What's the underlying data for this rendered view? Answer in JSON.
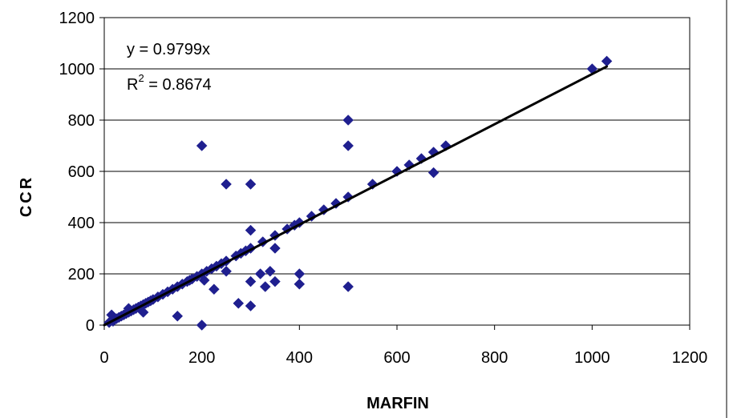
{
  "chart_data": {
    "type": "scatter",
    "title": "",
    "xlabel": "MARFIN",
    "ylabel": "CCR",
    "xlim": [
      0,
      1200
    ],
    "ylim": [
      0,
      1200
    ],
    "xticks": [
      0,
      200,
      400,
      600,
      800,
      1000,
      1200
    ],
    "yticks": [
      0,
      200,
      400,
      600,
      800,
      1000,
      1200
    ],
    "xtick_labels": [
      "0",
      "200",
      "400",
      "600",
      "800",
      "1000",
      "1200"
    ],
    "ytick_labels": [
      "0",
      "200",
      "400",
      "600",
      "800",
      "1000",
      "1200"
    ],
    "horizontal_grid": true,
    "vertical_grid": false,
    "marker": "diamond",
    "marker_color": "#1f1f8f",
    "trendline_color": "#000000",
    "trendline": {
      "slope": 0.9799,
      "intercept": 0,
      "x_range": [
        0,
        1030
      ],
      "equation_label": "y = 0.9799x",
      "r2_prefix": "R",
      "r2_superscript": "2",
      "r2_value": " = 0.8674"
    },
    "points": [
      [
        10,
        10
      ],
      [
        15,
        40
      ],
      [
        18,
        15
      ],
      [
        20,
        20
      ],
      [
        25,
        25
      ],
      [
        30,
        30
      ],
      [
        35,
        35
      ],
      [
        40,
        40
      ],
      [
        45,
        45
      ],
      [
        50,
        50
      ],
      [
        50,
        65
      ],
      [
        55,
        55
      ],
      [
        60,
        60
      ],
      [
        65,
        65
      ],
      [
        70,
        70
      ],
      [
        75,
        75
      ],
      [
        80,
        80
      ],
      [
        80,
        50
      ],
      [
        85,
        85
      ],
      [
        90,
        90
      ],
      [
        95,
        95
      ],
      [
        100,
        100
      ],
      [
        110,
        110
      ],
      [
        120,
        120
      ],
      [
        130,
        130
      ],
      [
        140,
        140
      ],
      [
        150,
        150
      ],
      [
        150,
        35
      ],
      [
        160,
        160
      ],
      [
        170,
        170
      ],
      [
        175,
        175
      ],
      [
        180,
        180
      ],
      [
        190,
        190
      ],
      [
        200,
        200
      ],
      [
        200,
        700
      ],
      [
        200,
        0
      ],
      [
        205,
        175
      ],
      [
        210,
        210
      ],
      [
        220,
        220
      ],
      [
        225,
        140
      ],
      [
        230,
        230
      ],
      [
        240,
        240
      ],
      [
        250,
        250
      ],
      [
        250,
        550
      ],
      [
        250,
        210
      ],
      [
        270,
        270
      ],
      [
        275,
        85
      ],
      [
        280,
        280
      ],
      [
        290,
        290
      ],
      [
        300,
        300
      ],
      [
        300,
        550
      ],
      [
        300,
        370
      ],
      [
        300,
        170
      ],
      [
        300,
        75
      ],
      [
        320,
        200
      ],
      [
        325,
        325
      ],
      [
        330,
        150
      ],
      [
        340,
        210
      ],
      [
        350,
        350
      ],
      [
        350,
        300
      ],
      [
        350,
        170
      ],
      [
        375,
        375
      ],
      [
        390,
        390
      ],
      [
        400,
        400
      ],
      [
        400,
        200
      ],
      [
        400,
        160
      ],
      [
        425,
        425
      ],
      [
        450,
        450
      ],
      [
        475,
        475
      ],
      [
        500,
        500
      ],
      [
        500,
        800
      ],
      [
        500,
        700
      ],
      [
        500,
        150
      ],
      [
        550,
        550
      ],
      [
        600,
        600
      ],
      [
        625,
        625
      ],
      [
        650,
        650
      ],
      [
        675,
        675
      ],
      [
        675,
        595
      ],
      [
        700,
        700
      ],
      [
        1000,
        1000
      ],
      [
        1030,
        1030
      ]
    ]
  }
}
